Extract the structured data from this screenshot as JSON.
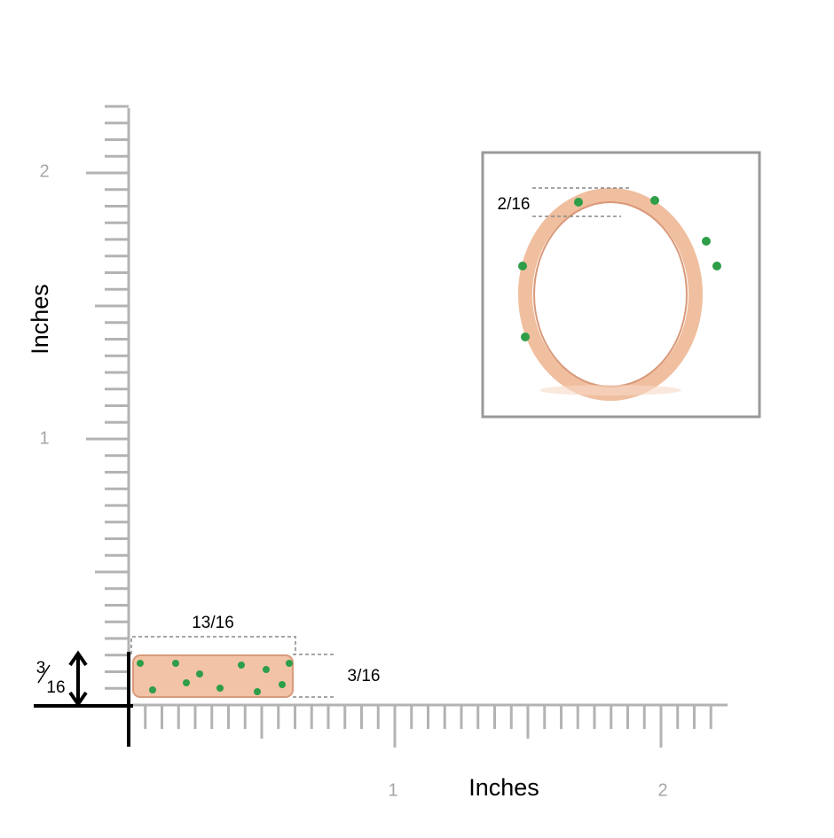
{
  "y_axis": {
    "label": "Inches",
    "ticks": [
      "1",
      "2"
    ]
  },
  "x_axis": {
    "label": "Inches",
    "ticks": [
      "1",
      "2"
    ]
  },
  "ring_dimensions": {
    "width": "13/16",
    "height": "3/16",
    "side_height": {
      "numerator": "3",
      "denominator": "16"
    }
  },
  "inset": {
    "height": "2/16"
  }
}
